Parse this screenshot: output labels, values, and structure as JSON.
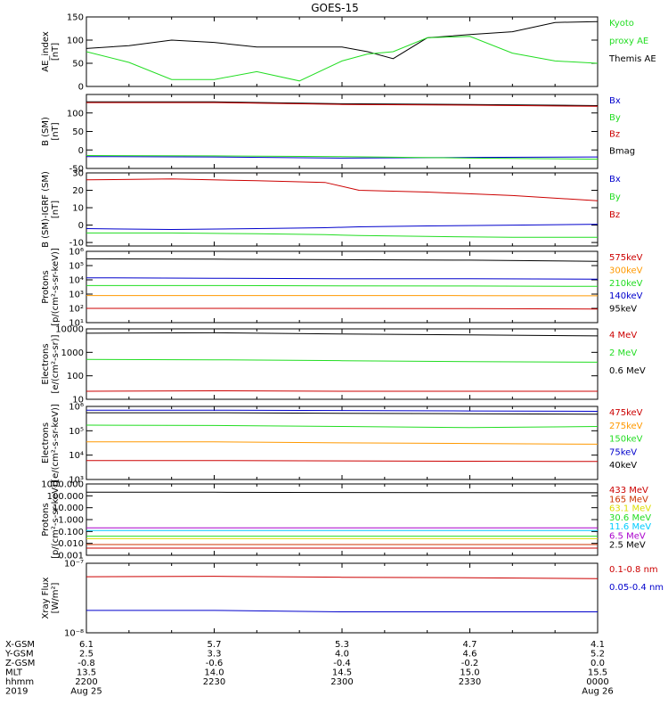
{
  "title": "GOES-15",
  "colors": {
    "black": "#000000",
    "red": "#cc0000",
    "green": "#22dd22",
    "blue": "#0000cc",
    "orange": "#ff9900",
    "yellow": "#dddd00",
    "cyan": "#00ccff",
    "purple": "#aa00cc",
    "brown": "#cc3300",
    "teal": "#00bbbb"
  },
  "panels": [
    {
      "id": "ae",
      "ylabel": [
        "AE_index",
        "[nT]"
      ],
      "scale": "linear",
      "ylim": [
        0,
        150
      ],
      "ticks": [
        0,
        50,
        100,
        150
      ],
      "tick_labels": [
        "0",
        "50",
        "100",
        "150"
      ],
      "legend": [
        {
          "text": "Kyoto",
          "color": "green"
        },
        {
          "text": "proxy AE",
          "color": "green"
        },
        {
          "text": "Themis AE",
          "color": "black"
        }
      ]
    },
    {
      "id": "bsm",
      "ylabel": [
        "B (SM)",
        "[nT]"
      ],
      "scale": "linear",
      "ylim": [
        -50,
        150
      ],
      "ticks": [
        -50,
        0,
        50,
        100
      ],
      "tick_labels": [
        "-50",
        "0",
        "50",
        "100"
      ],
      "legend": [
        {
          "text": "Bx",
          "color": "blue"
        },
        {
          "text": "By",
          "color": "green"
        },
        {
          "text": "Bz",
          "color": "red"
        },
        {
          "text": "Bmag",
          "color": "black"
        }
      ]
    },
    {
      "id": "bigrf",
      "ylabel": [
        "B (SM)-IGRF (SM)",
        "[nT]"
      ],
      "scale": "linear",
      "ylim": [
        -12,
        30
      ],
      "ticks": [
        -10,
        0,
        10,
        20,
        30
      ],
      "tick_labels": [
        "-10",
        "0",
        "10",
        "20",
        "30"
      ],
      "legend": [
        {
          "text": "Bx",
          "color": "blue"
        },
        {
          "text": "By",
          "color": "green"
        },
        {
          "text": "Bz",
          "color": "red"
        }
      ]
    },
    {
      "id": "protons_kev",
      "ylabel": [
        "Protons",
        "[p/(cm²-s-sr-keV)]"
      ],
      "scale": "log",
      "ylim": [
        10,
        1000000
      ],
      "ticks": [
        10,
        100,
        1000,
        10000,
        100000,
        1000000
      ],
      "tick_labels": [
        "10¹",
        "10²",
        "10³",
        "10⁴",
        "10⁵",
        "10⁶"
      ],
      "legend": [
        {
          "text": "575keV",
          "color": "red"
        },
        {
          "text": "300keV",
          "color": "orange"
        },
        {
          "text": "210keV",
          "color": "green"
        },
        {
          "text": "140keV",
          "color": "blue"
        },
        {
          "text": "95keV",
          "color": "black"
        }
      ]
    },
    {
      "id": "electrons_mev",
      "ylabel": [
        "Electrons",
        "[e/(cm²-s-sr)]"
      ],
      "scale": "log",
      "ylim": [
        10,
        10000
      ],
      "ticks": [
        10,
        100,
        1000,
        10000
      ],
      "tick_labels": [
        "10",
        "100",
        "1000",
        "10000"
      ],
      "legend": [
        {
          "text": "4 MeV",
          "color": "red"
        },
        {
          "text": "2 MeV",
          "color": "green"
        },
        {
          "text": "0.6 MeV",
          "color": "black"
        }
      ]
    },
    {
      "id": "electrons_kev",
      "ylabel": [
        "Electrons",
        "[e/(cm²-s-sr-keV)]"
      ],
      "scale": "log",
      "ylim": [
        1000,
        1000000
      ],
      "ticks": [
        1000,
        10000,
        100000,
        1000000
      ],
      "tick_labels": [
        "10³",
        "10⁴",
        "10⁵",
        "10⁶"
      ],
      "legend": [
        {
          "text": "475keV",
          "color": "red"
        },
        {
          "text": "275keV",
          "color": "orange"
        },
        {
          "text": "150keV",
          "color": "green"
        },
        {
          "text": "75keV",
          "color": "blue"
        },
        {
          "text": "40keV",
          "color": "black"
        }
      ]
    },
    {
      "id": "protons_mev",
      "ylabel": [
        "Protons",
        "[p/(cm²-s-sr-keV)]"
      ],
      "scale": "log",
      "ylim": [
        0.001,
        1000
      ],
      "ticks": [
        0.001,
        0.01,
        0.1,
        1,
        10,
        100,
        1000
      ],
      "tick_labels": [
        "0.001",
        "0.010",
        "0.100",
        "1.000",
        "10.000",
        "100.000",
        "1000.000"
      ],
      "legend": [
        {
          "text": "433 MeV",
          "color": "red"
        },
        {
          "text": "165 MeV",
          "color": "brown"
        },
        {
          "text": "63.1 MeV",
          "color": "yellow"
        },
        {
          "text": "30.6 MeV",
          "color": "green"
        },
        {
          "text": "11.6 MeV",
          "color": "cyan"
        },
        {
          "text": "6.5 MeV",
          "color": "purple"
        },
        {
          "text": "2.5 MeV",
          "color": "black"
        }
      ]
    },
    {
      "id": "xray",
      "ylabel": [
        "Xray Flux",
        "[W/m²]"
      ],
      "scale": "log",
      "ylim": [
        1e-08,
        1e-07
      ],
      "ticks": [
        1e-08,
        1e-07
      ],
      "tick_labels": [
        "10⁻⁸",
        "10⁻⁷"
      ],
      "legend": [
        {
          "text": "0.1-0.8 nm",
          "color": "red"
        },
        {
          "text": "0.05-0.4 nm",
          "color": "blue"
        }
      ]
    }
  ],
  "chart_data": [
    {
      "type": "line",
      "panel": "ae",
      "x": [
        0,
        5,
        10,
        15,
        20,
        25,
        30,
        33,
        36,
        40,
        45,
        50,
        55,
        60
      ],
      "series": [
        {
          "name": "Themis AE",
          "color": "black",
          "values": [
            82,
            88,
            100,
            95,
            85,
            85,
            85,
            75,
            60,
            105,
            112,
            118,
            138,
            140
          ]
        },
        {
          "name": "Kyoto proxy AE",
          "color": "green",
          "values": [
            75,
            52,
            15,
            15,
            32,
            12,
            55,
            70,
            75,
            105,
            108,
            72,
            55,
            50
          ]
        }
      ]
    },
    {
      "type": "line",
      "panel": "bsm",
      "x": [
        0,
        15,
        30,
        45,
        60
      ],
      "series": [
        {
          "name": "Bmag",
          "color": "black",
          "values": [
            130,
            130,
            125,
            123,
            120
          ]
        },
        {
          "name": "Bz",
          "color": "red",
          "values": [
            128,
            128,
            123,
            121,
            118
          ]
        },
        {
          "name": "Bx",
          "color": "blue",
          "values": [
            -18,
            -19,
            -22,
            -20,
            -19
          ]
        },
        {
          "name": "By",
          "color": "green",
          "values": [
            -15,
            -16,
            -18,
            -22,
            -25
          ]
        }
      ]
    },
    {
      "type": "line",
      "panel": "bigrf",
      "x": [
        0,
        10,
        20,
        28,
        32,
        40,
        50,
        60
      ],
      "series": [
        {
          "name": "Bz",
          "color": "red",
          "values": [
            26,
            26.5,
            25.5,
            24.5,
            20,
            19,
            17,
            14
          ]
        },
        {
          "name": "Bx",
          "color": "blue",
          "values": [
            -2,
            -2.5,
            -2,
            -1.5,
            -1,
            -0.5,
            0,
            0.5
          ]
        },
        {
          "name": "By",
          "color": "green",
          "values": [
            -4.5,
            -4.5,
            -5,
            -5.5,
            -6,
            -6.5,
            -7,
            -7
          ]
        }
      ]
    },
    {
      "type": "line",
      "panel": "protons_kev",
      "x": [
        0,
        15,
        30,
        45,
        60
      ],
      "series": [
        {
          "name": "95keV",
          "color": "black",
          "values": [
            300000,
            280000,
            260000,
            240000,
            200000
          ]
        },
        {
          "name": "140keV",
          "color": "blue",
          "values": [
            14000,
            13000,
            12000,
            12000,
            11000
          ]
        },
        {
          "name": "210keV",
          "color": "green",
          "values": [
            4000,
            4000,
            3800,
            3700,
            3500
          ]
        },
        {
          "name": "300keV",
          "color": "orange",
          "values": [
            800,
            800,
            790,
            780,
            760
          ]
        },
        {
          "name": "575keV",
          "color": "red",
          "values": [
            100,
            100,
            98,
            96,
            90
          ]
        }
      ]
    },
    {
      "type": "line",
      "panel": "electrons_mev",
      "x": [
        0,
        15,
        30,
        45,
        60
      ],
      "series": [
        {
          "name": "0.6 MeV",
          "color": "black",
          "values": [
            6500,
            6800,
            6000,
            5500,
            5000
          ]
        },
        {
          "name": "2 MeV",
          "color": "green",
          "values": [
            500,
            480,
            440,
            400,
            380
          ]
        },
        {
          "name": "4 MeV",
          "color": "red",
          "values": [
            22,
            23,
            22,
            22,
            22
          ]
        }
      ]
    },
    {
      "type": "line",
      "panel": "electrons_kev",
      "x": [
        0,
        15,
        30,
        45,
        60
      ],
      "series": [
        {
          "name": "40keV",
          "color": "black",
          "values": [
            550000,
            550000,
            520000,
            500000,
            480000
          ]
        },
        {
          "name": "75keV",
          "color": "blue",
          "values": [
            700000,
            700000,
            680000,
            650000,
            630000
          ]
        },
        {
          "name": "150keV",
          "color": "green",
          "values": [
            170000,
            165000,
            150000,
            135000,
            150000
          ]
        },
        {
          "name": "275keV",
          "color": "orange",
          "values": [
            35000,
            35000,
            32000,
            30000,
            28000
          ]
        },
        {
          "name": "475keV",
          "color": "red",
          "values": [
            6000,
            6000,
            5800,
            5600,
            5500
          ]
        }
      ]
    },
    {
      "type": "line",
      "panel": "protons_mev",
      "x": [
        0,
        15,
        30,
        45,
        60
      ],
      "series": [
        {
          "name": "2.5 MeV",
          "color": "black",
          "values": [
            200,
            200,
            190,
            185,
            180
          ]
        },
        {
          "name": "6.5 MeV",
          "color": "purple",
          "values": [
            0.2,
            0.2,
            0.2,
            0.2,
            0.2
          ]
        },
        {
          "name": "11.6 MeV",
          "color": "cyan",
          "values": [
            0.12,
            0.12,
            0.12,
            0.12,
            0.12
          ]
        },
        {
          "name": "30.6 MeV",
          "color": "green",
          "values": [
            0.04,
            0.04,
            0.04,
            0.04,
            0.04
          ]
        },
        {
          "name": "63.1 MeV",
          "color": "yellow",
          "values": [
            0.025,
            0.025,
            0.025,
            0.025,
            0.025
          ]
        },
        {
          "name": "165 MeV",
          "color": "brown",
          "values": [
            0.008,
            0.008,
            0.008,
            0.008,
            0.008
          ]
        },
        {
          "name": "433 MeV",
          "color": "red",
          "values": [
            0.004,
            0.004,
            0.004,
            0.004,
            0.004
          ]
        }
      ]
    },
    {
      "type": "line",
      "panel": "xray",
      "x": [
        0,
        15,
        30,
        45,
        60
      ],
      "series": [
        {
          "name": "0.1-0.8 nm",
          "color": "red",
          "values": [
            6.4e-08,
            6.5e-08,
            6.3e-08,
            6.2e-08,
            6e-08
          ]
        },
        {
          "name": "0.05-0.4 nm",
          "color": "blue",
          "values": [
            2.1e-08,
            2.1e-08,
            2e-08,
            2e-08,
            2e-08
          ]
        }
      ]
    }
  ],
  "xaxis": {
    "row_labels": [
      "X-GSM",
      "Y-GSM",
      "Z-GSM",
      "MLT",
      "hhmm",
      "2019"
    ],
    "ticks": [
      {
        "x": 0,
        "rows": [
          "6.1",
          "2.5",
          "-0.8",
          "13.5",
          "2200",
          "Aug 25"
        ]
      },
      {
        "x": 15,
        "rows": [
          "5.7",
          "3.3",
          "-0.6",
          "14.0",
          "2230",
          ""
        ]
      },
      {
        "x": 30,
        "rows": [
          "5.3",
          "4.0",
          "-0.4",
          "14.5",
          "2300",
          ""
        ]
      },
      {
        "x": 45,
        "rows": [
          "4.7",
          "4.6",
          "-0.2",
          "15.0",
          "2330",
          ""
        ]
      },
      {
        "x": 60,
        "rows": [
          "4.1",
          "5.2",
          "0.0",
          "15.5",
          "0000",
          "Aug 26"
        ]
      }
    ]
  }
}
